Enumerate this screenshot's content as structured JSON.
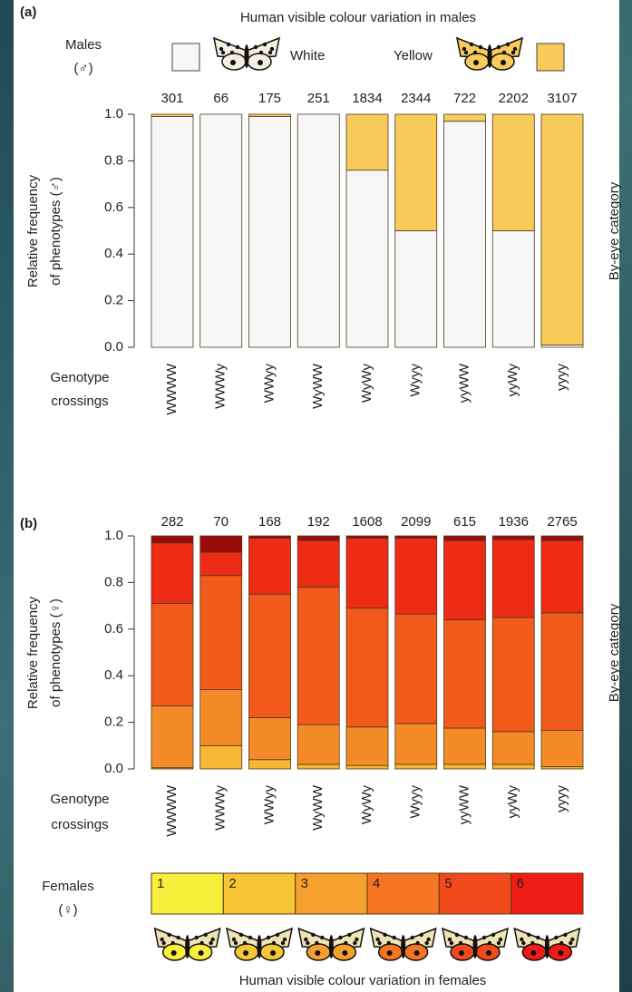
{
  "chart_data": [
    {
      "type": "bar",
      "stacked": true,
      "panel": "(a)",
      "title": "Human visible colour variation in males",
      "legend_title": "Males",
      "legend_symbol": "(♂)",
      "y_label": [
        "Relative frequency",
        "of phenotypes (♂)"
      ],
      "side_label": "By-eye category",
      "x_label": [
        "Genotype",
        "crossings"
      ],
      "categories": [
        "WWWW",
        "WWWy",
        "WWyy",
        "WyWW",
        "WyWy",
        "Wyyy",
        "yyWW",
        "yyWy",
        "yyyy"
      ],
      "counts": [
        301,
        66,
        175,
        251,
        1834,
        2344,
        722,
        2202,
        3107
      ],
      "series": [
        {
          "name": "White",
          "color": "#f7f7f7",
          "values": [
            0.99,
            1.0,
            0.99,
            1.0,
            0.76,
            0.5,
            0.97,
            0.5,
            0.01
          ]
        },
        {
          "name": "Yellow",
          "color": "#f9cb5a",
          "values": [
            0.01,
            0.0,
            0.01,
            0.0,
            0.24,
            0.5,
            0.03,
            0.5,
            0.99
          ]
        }
      ],
      "ylim": [
        0,
        1
      ],
      "yticks": [
        {
          "value": 0,
          "label": "0.0"
        },
        0.2,
        0.4,
        0.6,
        0.8,
        {
          "value": 1,
          "label": "1.0"
        }
      ]
    },
    {
      "type": "bar",
      "stacked": true,
      "panel": "(b)",
      "title": "Human visible colour variation in females",
      "legend_title": "Females",
      "legend_symbol": "(♀)",
      "y_label": [
        "Relative frequency",
        "of phenotypes (♀)"
      ],
      "side_label": "By-eye category",
      "x_label": [
        "Genotype",
        "crossings"
      ],
      "categories": [
        "WWWW",
        "WWWy",
        "WWyy",
        "WyWW",
        "WyWy",
        "Wyyy",
        "yyWW",
        "yyWy",
        "yyyy"
      ],
      "counts": [
        282,
        70,
        168,
        192,
        1608,
        2099,
        615,
        1936,
        2765
      ],
      "series": [
        {
          "name": "1",
          "color": "#f7e03a",
          "values": [
            0,
            0,
            0,
            0,
            0,
            0,
            0,
            0,
            0
          ]
        },
        {
          "name": "2",
          "color": "#f6b732",
          "values": [
            0.005,
            0.1,
            0.04,
            0.02,
            0.015,
            0.02,
            0.02,
            0.02,
            0.01
          ]
        },
        {
          "name": "3",
          "color": "#f58a28",
          "values": [
            0.265,
            0.24,
            0.18,
            0.17,
            0.165,
            0.175,
            0.155,
            0.14,
            0.155
          ]
        },
        {
          "name": "4",
          "color": "#f25a1c",
          "values": [
            0.44,
            0.49,
            0.53,
            0.59,
            0.51,
            0.47,
            0.465,
            0.49,
            0.505
          ]
        },
        {
          "name": "5",
          "color": "#ee2b15",
          "values": [
            0.26,
            0.1,
            0.24,
            0.2,
            0.3,
            0.325,
            0.34,
            0.335,
            0.31
          ]
        },
        {
          "name": "6",
          "color": "#9a0c0c",
          "values": [
            0.03,
            0.07,
            0.01,
            0.02,
            0.01,
            0.01,
            0.02,
            0.015,
            0.02
          ]
        }
      ],
      "key_colors": [
        "#f8ee3c",
        "#f7c634",
        "#f5a02c",
        "#f47624",
        "#f14a1c",
        "#ee1c14"
      ],
      "ylim": [
        0,
        1
      ],
      "yticks": [
        {
          "value": 0,
          "label": "0.0"
        },
        0.2,
        0.4,
        0.6,
        0.8,
        {
          "value": 1,
          "label": "1.0"
        }
      ]
    }
  ]
}
